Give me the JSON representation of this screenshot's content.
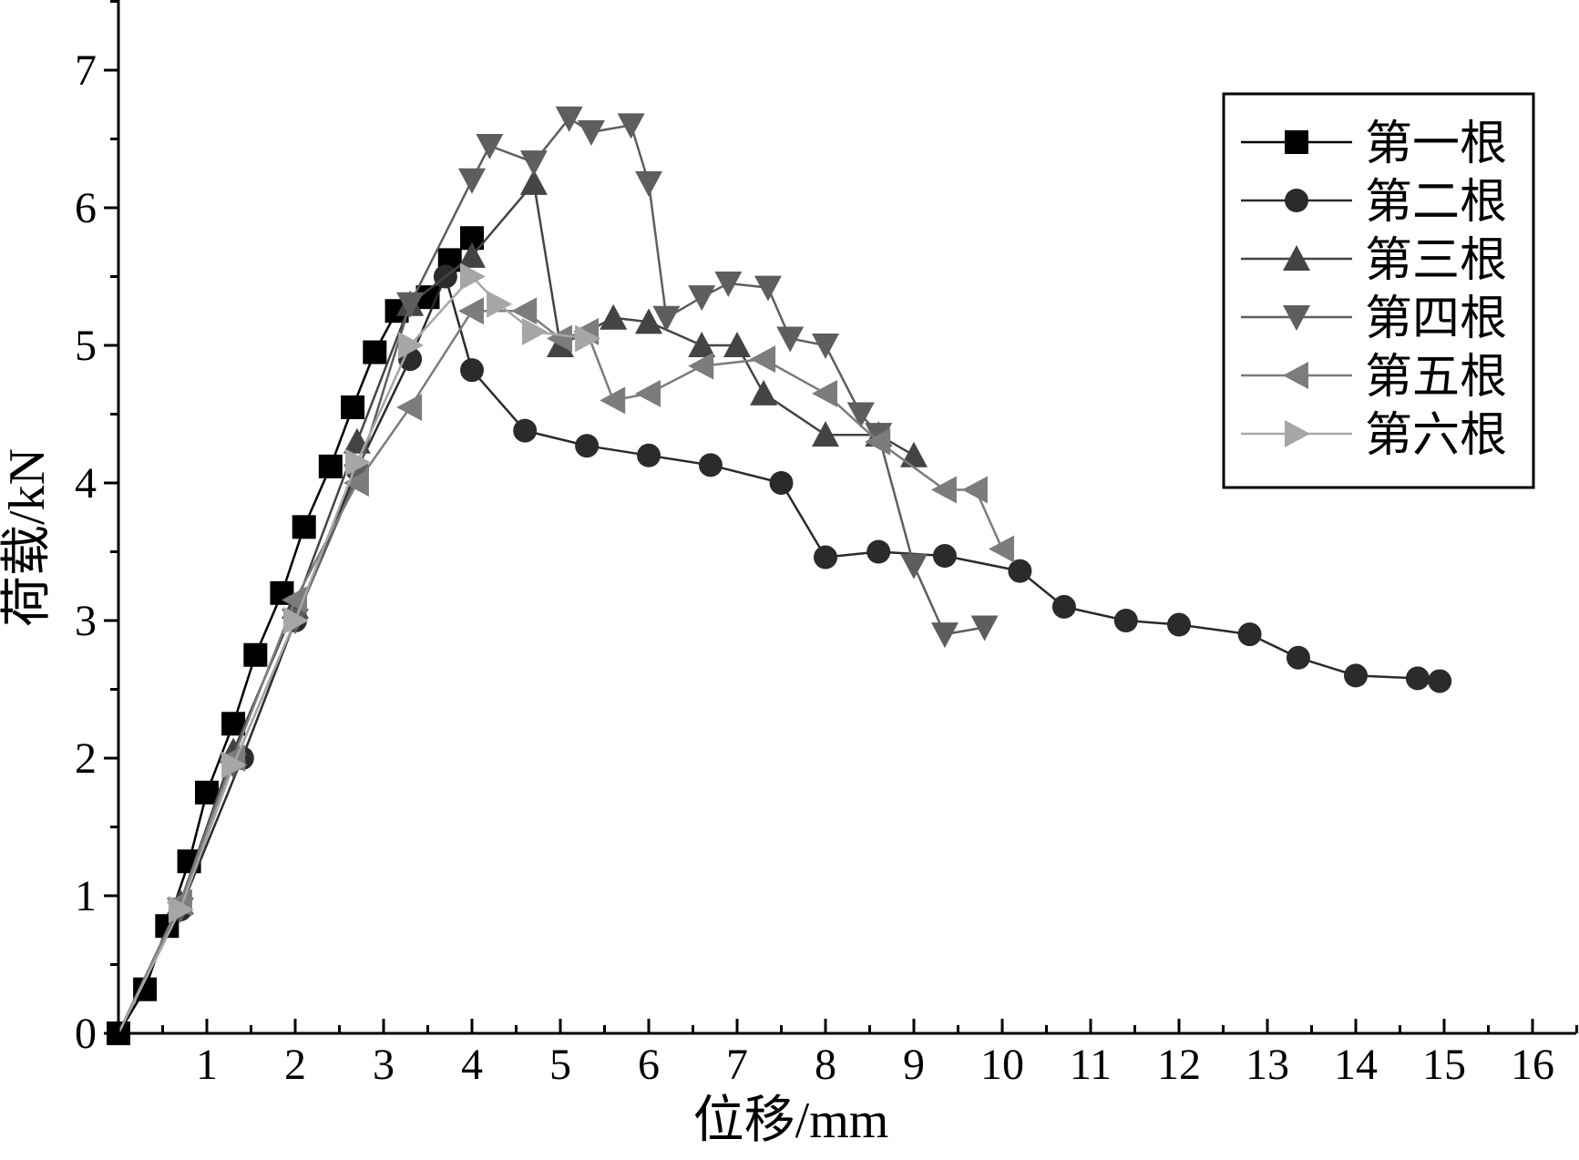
{
  "chart_data": {
    "type": "line",
    "title": "",
    "xlabel": "位移/mm",
    "ylabel": "荷载/kN",
    "xlim": [
      0,
      16.5
    ],
    "ylim": [
      0,
      7.5
    ],
    "xticks": [
      1,
      2,
      3,
      4,
      5,
      6,
      7,
      8,
      9,
      10,
      11,
      12,
      13,
      14,
      15,
      16
    ],
    "yticks": [
      0,
      1,
      2,
      3,
      4,
      5,
      6,
      7
    ],
    "origin_label": "0",
    "grid": false,
    "legend_position": "top-right",
    "series": [
      {
        "name": "第一根",
        "marker": "square",
        "color": "#000000",
        "x": [
          0,
          0.3,
          0.55,
          0.8,
          1.0,
          1.3,
          1.55,
          1.85,
          2.1,
          2.4,
          2.65,
          2.9,
          3.15,
          3.5,
          3.75,
          4.0
        ],
        "y": [
          0,
          0.32,
          0.78,
          1.25,
          1.75,
          2.25,
          2.75,
          3.2,
          3.68,
          4.12,
          4.55,
          4.95,
          5.25,
          5.35,
          5.62,
          5.78
        ]
      },
      {
        "name": "第二根",
        "marker": "circle",
        "color": "#2b2b2b",
        "x": [
          0,
          0.7,
          1.4,
          2.0,
          2.7,
          3.3,
          3.7,
          4.0,
          4.6,
          5.3,
          6.0,
          6.7,
          7.5,
          8.0,
          8.6,
          9.35,
          10.2,
          10.7,
          11.4,
          12.0,
          12.8,
          13.35,
          14.0,
          14.7,
          14.95
        ],
        "y": [
          0,
          0.9,
          2.0,
          3.0,
          4.1,
          4.9,
          5.5,
          4.82,
          4.38,
          4.27,
          4.2,
          4.13,
          4.0,
          3.46,
          3.5,
          3.47,
          3.36,
          3.1,
          3.0,
          2.97,
          2.9,
          2.73,
          2.6,
          2.58,
          2.56
        ]
      },
      {
        "name": "第三根",
        "marker": "triangle-up",
        "color": "#444444",
        "x": [
          0,
          0.7,
          1.3,
          2.0,
          2.7,
          3.3,
          4.0,
          4.7,
          5.0,
          5.6,
          6.0,
          6.6,
          7.0,
          7.3,
          8.0,
          8.6,
          9.0
        ],
        "y": [
          0,
          0.95,
          2.05,
          3.1,
          4.3,
          5.3,
          5.65,
          6.18,
          5.0,
          5.2,
          5.17,
          5.0,
          5.0,
          4.65,
          4.35,
          4.35,
          4.2
        ]
      },
      {
        "name": "第四根",
        "marker": "triangle-down",
        "color": "#5e5e5e",
        "x": [
          0,
          0.7,
          1.3,
          2.0,
          2.7,
          3.3,
          4.0,
          4.2,
          4.7,
          5.1,
          5.35,
          5.8,
          6.0,
          6.2,
          6.6,
          6.9,
          7.35,
          7.6,
          8.0,
          8.4,
          8.6,
          9.0,
          9.35,
          9.8
        ],
        "y": [
          0,
          0.9,
          1.95,
          3.0,
          4.05,
          5.3,
          6.2,
          6.45,
          6.33,
          6.65,
          6.55,
          6.6,
          6.18,
          5.2,
          5.35,
          5.45,
          5.42,
          5.05,
          5.0,
          4.5,
          4.35,
          3.4,
          2.9,
          2.95
        ]
      },
      {
        "name": "第五根",
        "marker": "triangle-left",
        "color": "#7c7c7c",
        "x": [
          0,
          0.7,
          1.3,
          2.0,
          2.7,
          3.3,
          4.0,
          4.6,
          5.0,
          5.3,
          5.6,
          6.0,
          6.6,
          7.3,
          8.0,
          8.6,
          9.35,
          9.7,
          10.0
        ],
        "y": [
          0,
          0.95,
          2.0,
          3.15,
          4.0,
          4.55,
          5.25,
          5.25,
          5.05,
          5.1,
          4.6,
          4.65,
          4.85,
          4.9,
          4.65,
          4.3,
          3.95,
          3.95,
          3.52
        ]
      },
      {
        "name": "第六根",
        "marker": "triangle-right",
        "color": "#a6a6a6",
        "x": [
          0,
          0.7,
          1.3,
          2.0,
          2.7,
          3.3,
          4.0,
          4.3,
          4.7,
          5.3
        ],
        "y": [
          0,
          0.9,
          1.95,
          3.0,
          4.15,
          5.0,
          5.5,
          5.3,
          5.1,
          5.05
        ]
      }
    ]
  }
}
